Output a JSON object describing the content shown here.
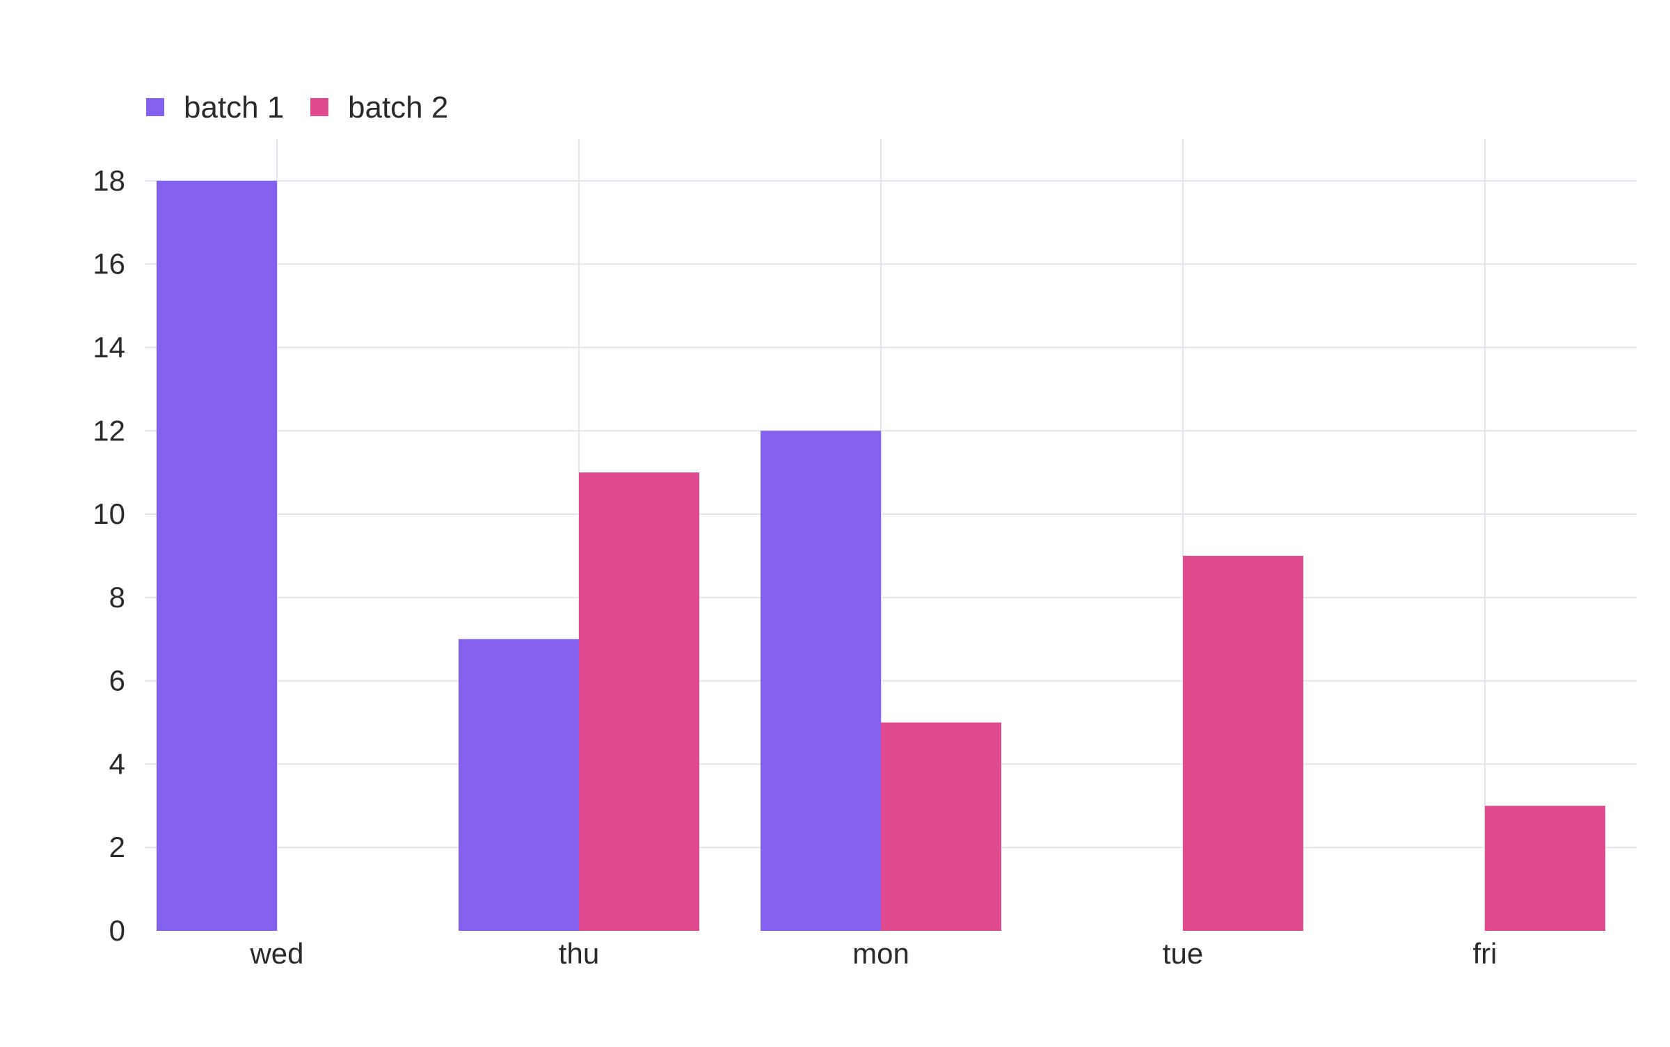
{
  "chart_data": {
    "type": "bar",
    "title": "",
    "xlabel": "",
    "ylabel": "",
    "categories": [
      "wed",
      "thu",
      "mon",
      "tue",
      "fri"
    ],
    "series": [
      {
        "name": "batch 1",
        "color": "#8360ee",
        "values": [
          18,
          7,
          12,
          null,
          null
        ]
      },
      {
        "name": "batch 2",
        "color": "#df4a8e",
        "values": [
          null,
          11,
          5,
          9,
          3
        ]
      }
    ],
    "ylim": [
      0,
      19
    ],
    "yticks": [
      0,
      2,
      4,
      6,
      8,
      10,
      12,
      14,
      16,
      18
    ],
    "grid": true,
    "legend": {
      "placement": "top-left",
      "orientation": "horizontal"
    },
    "barmode": "group"
  }
}
